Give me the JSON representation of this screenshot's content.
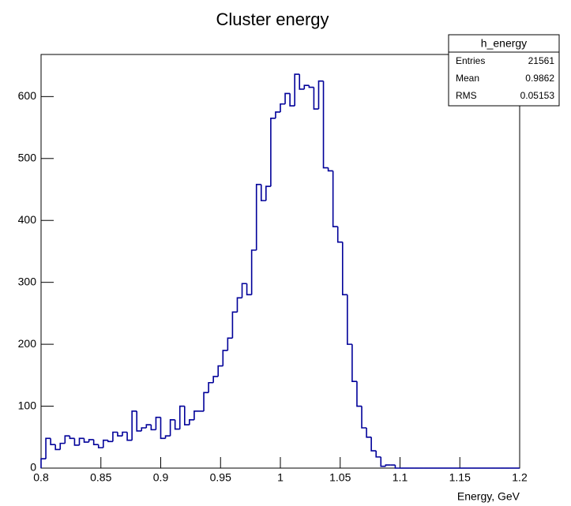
{
  "chart_data": {
    "type": "histogram",
    "title": "Cluster energy",
    "x_label": "Energy, GeV",
    "color": "#000099",
    "bins": [
      0.8,
      0.804,
      0.808,
      0.812,
      0.816,
      0.82,
      0.824,
      0.828,
      0.832,
      0.836,
      0.84,
      0.844,
      0.848,
      0.852,
      0.856,
      0.86,
      0.864,
      0.868,
      0.872,
      0.876,
      0.88,
      0.884,
      0.888,
      0.892,
      0.896,
      0.9,
      0.904,
      0.908,
      0.912,
      0.916,
      0.92,
      0.924,
      0.928,
      0.932,
      0.936,
      0.94,
      0.944,
      0.948,
      0.952,
      0.956,
      0.96,
      0.964,
      0.968,
      0.972,
      0.976,
      0.98,
      0.984,
      0.988,
      0.992,
      0.996,
      1.0,
      1.004,
      1.008,
      1.012,
      1.016,
      1.02,
      1.024,
      1.028,
      1.032,
      1.036,
      1.04,
      1.044,
      1.048,
      1.052,
      1.056,
      1.06,
      1.064,
      1.068,
      1.072,
      1.076,
      1.08,
      1.084,
      1.088,
      1.092,
      1.096,
      1.1,
      1.104,
      1.108,
      1.112,
      1.116,
      1.12,
      1.124,
      1.128,
      1.132,
      1.136,
      1.14,
      1.144,
      1.148,
      1.152,
      1.156,
      1.16,
      1.164,
      1.168,
      1.172,
      1.176,
      1.18,
      1.184,
      1.188,
      1.192,
      1.196,
      1.2
    ],
    "values": [
      15,
      48,
      38,
      30,
      40,
      52,
      48,
      37,
      48,
      42,
      46,
      38,
      33,
      45,
      43,
      58,
      52,
      58,
      45,
      92,
      60,
      65,
      70,
      62,
      82,
      48,
      52,
      78,
      63,
      100,
      70,
      78,
      92,
      92,
      122,
      138,
      148,
      165,
      190,
      210,
      252,
      275,
      298,
      280,
      352,
      458,
      432,
      455,
      565,
      575,
      588,
      605,
      585,
      636,
      612,
      618,
      615,
      580,
      625,
      485,
      480,
      390,
      365,
      280,
      200,
      140,
      100,
      65,
      50,
      28,
      18,
      3,
      5,
      5,
      0,
      0,
      0,
      0,
      0,
      0,
      0,
      0,
      0,
      0,
      0,
      0,
      0,
      0,
      0,
      0,
      0,
      0,
      0,
      0,
      0,
      0,
      0,
      0,
      0,
      0
    ],
    "xlim": [
      0.8,
      1.2
    ],
    "xticks": [
      0.8,
      0.85,
      0.9,
      0.95,
      1,
      1.05,
      1.1,
      1.15,
      1.2
    ],
    "ylim": [
      0,
      668
    ],
    "yticks": [
      0,
      100,
      200,
      300,
      400,
      500,
      600
    ],
    "stats": {
      "title": "h_energy",
      "rows": [
        {
          "label": "Entries",
          "value": 21561
        },
        {
          "label": "Mean",
          "value": 0.9862
        },
        {
          "label": "RMS",
          "value": 0.05153
        }
      ]
    }
  }
}
